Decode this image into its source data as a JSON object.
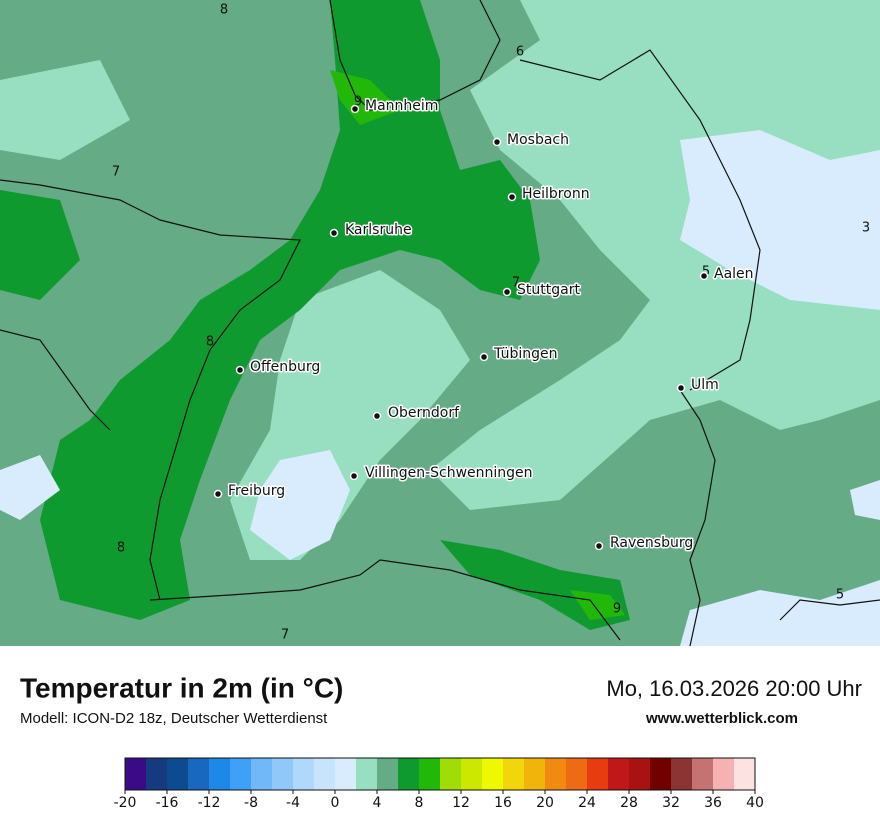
{
  "title": "Temperatur in 2m (in °C)",
  "subtitle": "Modell: ICON-D2 18z, Deutscher Wetterdienst",
  "timestamp": "Mo, 16.03.2026 20:00 Uhr",
  "website": "www.wetterblick.com",
  "cities": [
    "Mannheim",
    "Mosbach",
    "Heilbronn",
    "Karlsruhe",
    "Aalen",
    "Stuttgart",
    "Tübingen",
    "Ulm",
    "Offenburg",
    "Oberndorf",
    "Villingen-Schwenningen",
    "Freiburg",
    "Ravensburg"
  ],
  "contour_labels": [
    8,
    6,
    9,
    7,
    3,
    7,
    5,
    8,
    8,
    9,
    5,
    7
  ],
  "colorbar": {
    "bins": [
      -20,
      -18,
      -16,
      -14,
      -12,
      -10,
      -8,
      -6,
      -4,
      -2,
      0,
      2,
      4,
      6,
      8,
      10,
      12,
      14,
      16,
      18,
      20,
      22,
      24,
      26,
      28,
      30,
      32,
      34,
      36,
      38,
      40
    ],
    "colors": [
      "#3b0a87",
      "#153a80",
      "#0d4a8f",
      "#1868c0",
      "#1e88e8",
      "#3ea0f6",
      "#70b8f8",
      "#90c8fa",
      "#b0d8fb",
      "#c8e4fc",
      "#d8ecfd",
      "#97dfc0",
      "#65ab85",
      "#0f9a30",
      "#22b80a",
      "#a0dc08",
      "#cce800",
      "#eef800",
      "#f2d50a",
      "#f0b40a",
      "#f08a10",
      "#ee6a14",
      "#e63c10",
      "#c01818",
      "#a81212",
      "#730000",
      "#8c3434",
      "#c47272",
      "#f6b2b2",
      "#fde2e2"
    ],
    "ticks": [
      -20,
      -16,
      -12,
      -8,
      -4,
      0,
      4,
      8,
      12,
      16,
      20,
      24,
      28,
      32,
      36,
      40
    ]
  }
}
